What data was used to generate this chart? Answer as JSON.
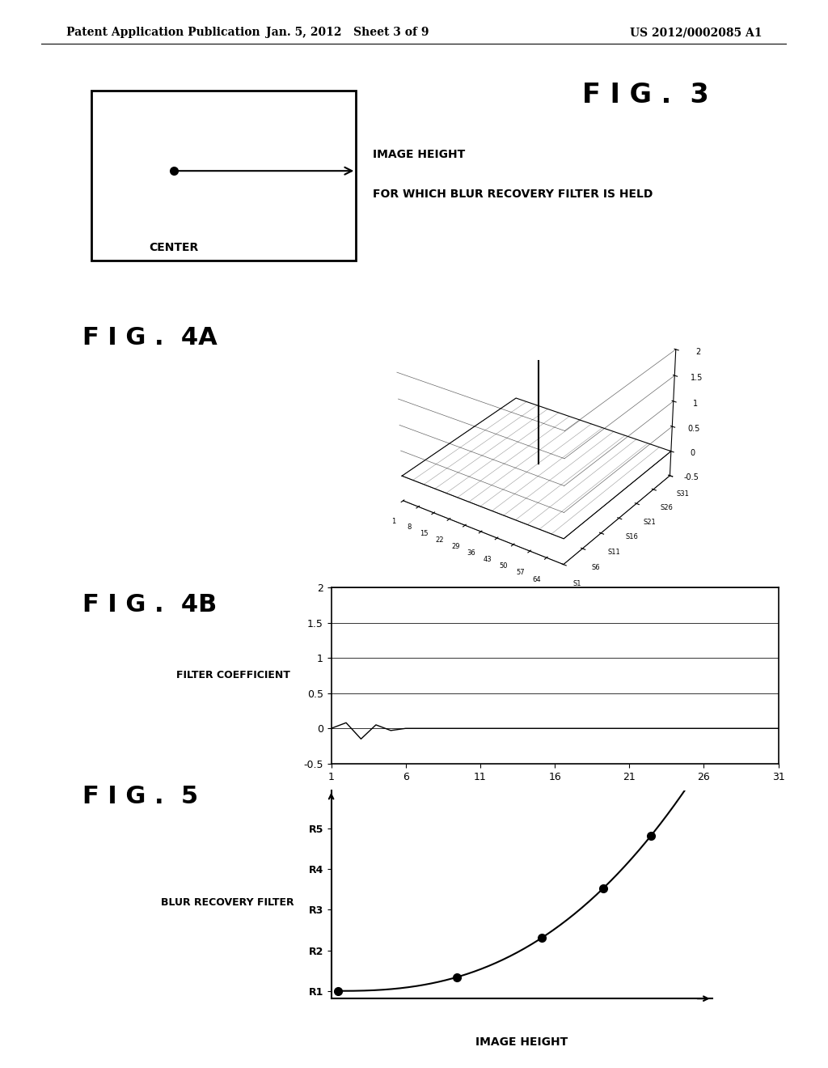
{
  "header_left": "Patent Application Publication",
  "header_mid": "Jan. 5, 2012   Sheet 3 of 9",
  "header_right": "US 2012/0002085 A1",
  "fig3_label": "F I G .  3",
  "fig3_center_text": "CENTER",
  "fig3_arrow_label1": "IMAGE HEIGHT",
  "fig3_arrow_label2": "FOR WHICH BLUR RECOVERY FILTER IS HELD",
  "fig4a_label": "F I G .  4A",
  "fig4b_label": "F I G .  4B",
  "fig4b_ylabel": "FILTER COEFFICIENT",
  "fig4b_xticks": [
    1,
    6,
    11,
    16,
    21,
    26,
    31
  ],
  "fig4b_yticks": [
    -0.5,
    0,
    0.5,
    1,
    1.5,
    2
  ],
  "fig5_label": "F I G .  5",
  "fig5_ylabel": "BLUR RECOVERY FILTER",
  "fig5_xlabel": "IMAGE HEIGHT",
  "fig5_ytick_labels": [
    "R1",
    "R2",
    "R3",
    "R4",
    "R5"
  ],
  "bg_color": "#ffffff",
  "text_color": "#000000"
}
